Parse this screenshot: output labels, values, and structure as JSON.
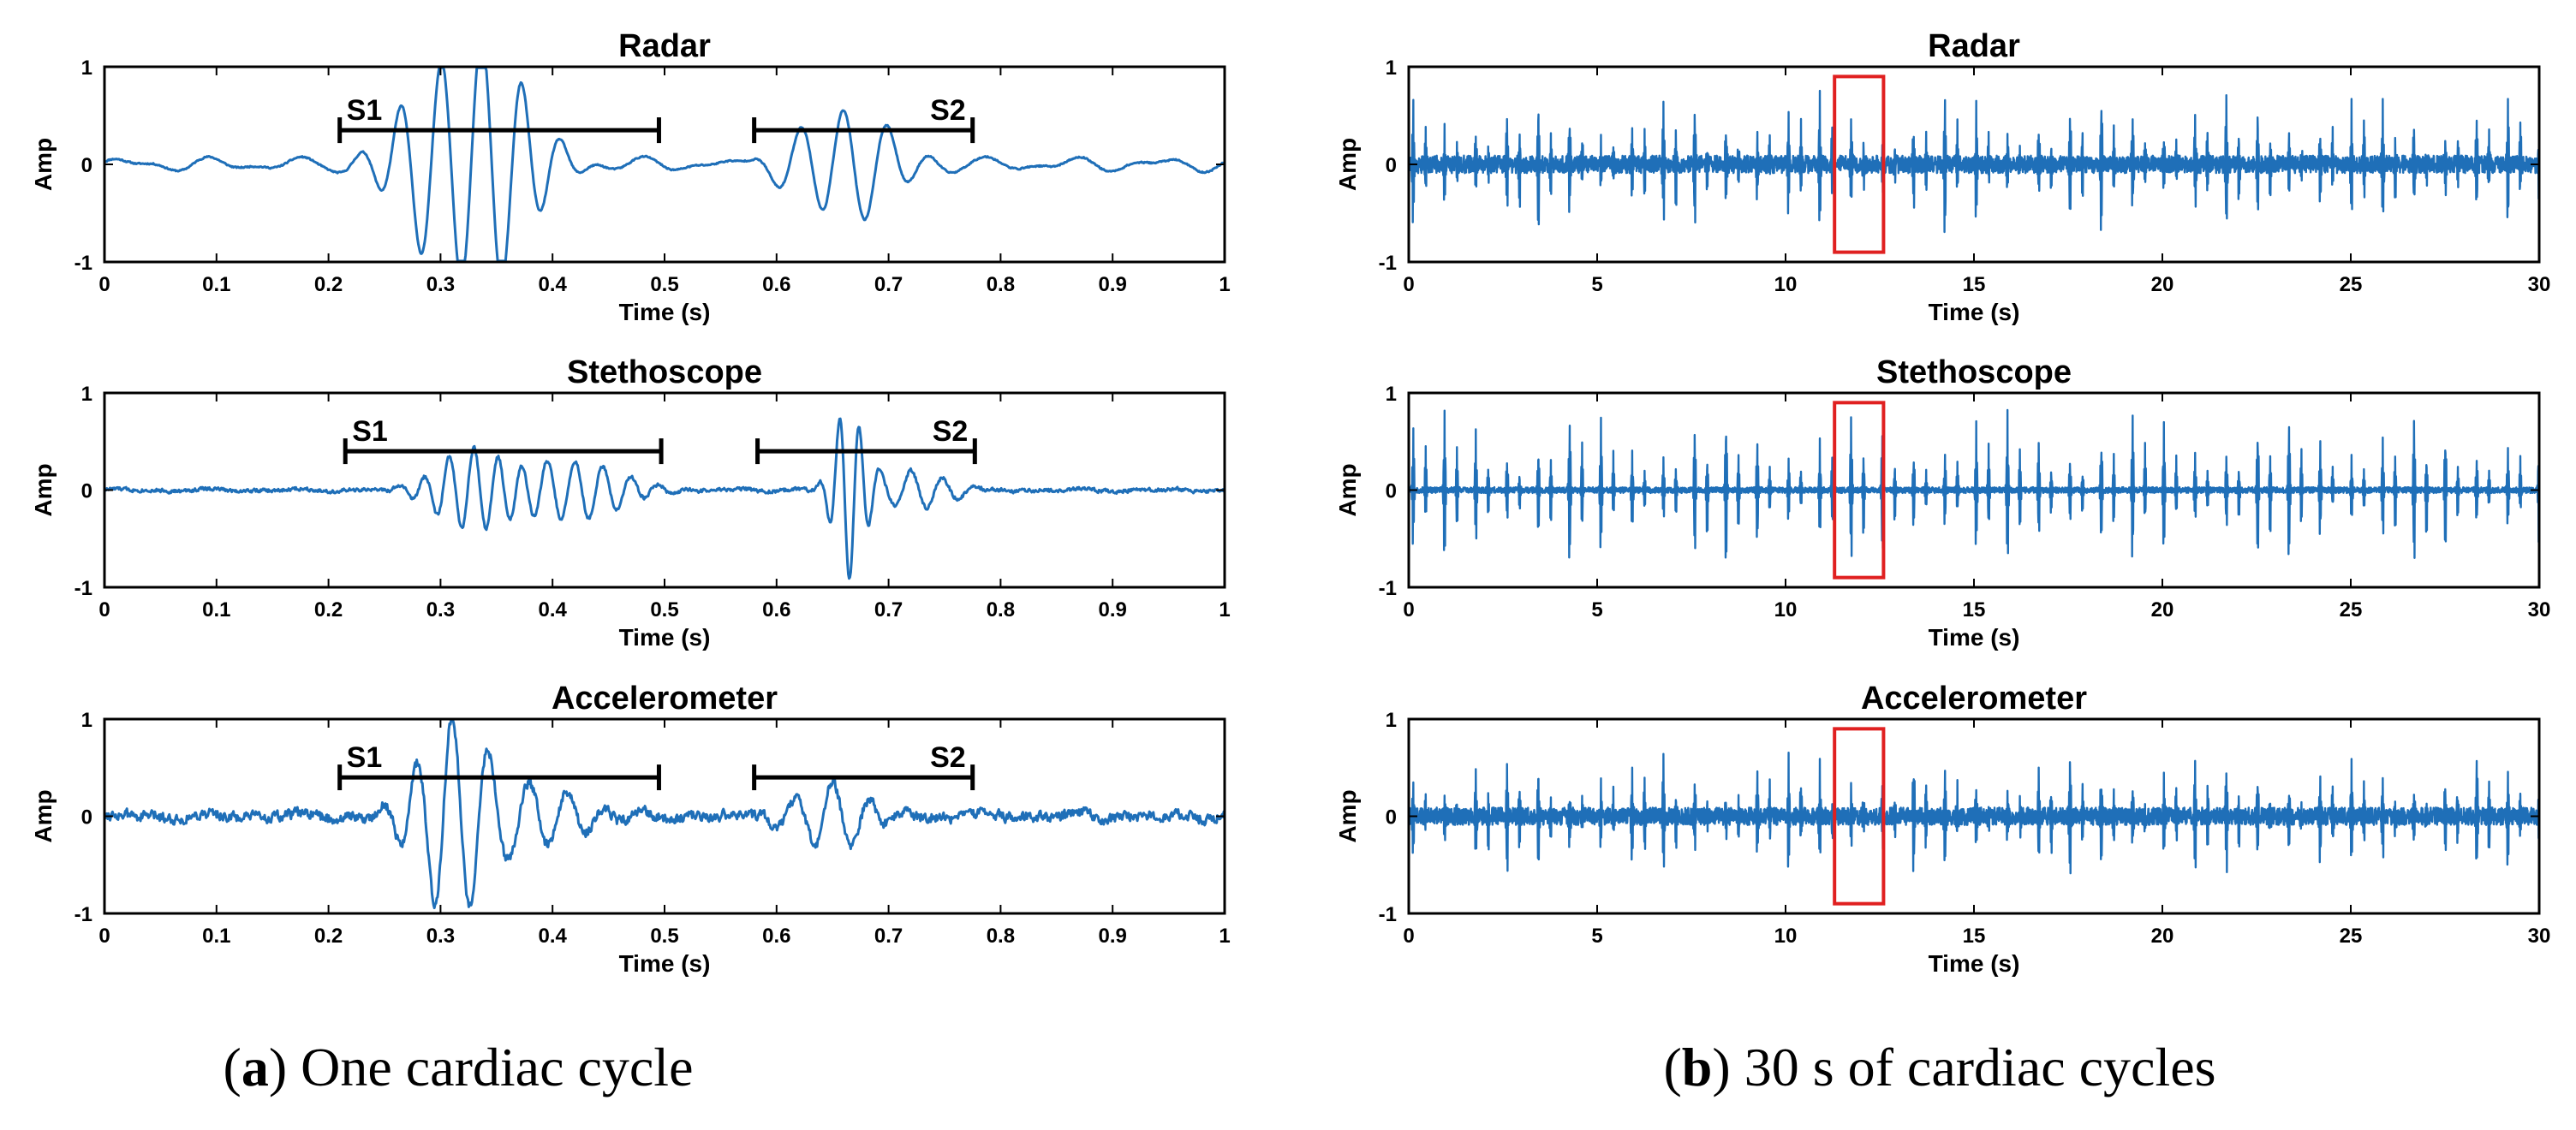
{
  "caption_a": {
    "letter": "a",
    "text": "One cardiac cycle",
    "open": "(",
    "close": ")"
  },
  "caption_b": {
    "letter": "b",
    "text": "30 s of cardiac cycles",
    "open": "(",
    "close": ")"
  },
  "colors": {
    "signal": "#1f6fb8",
    "highlight": "#e02020",
    "axis": "#000000"
  },
  "chart_data": [
    {
      "id": "a-radar",
      "type": "line",
      "title": "Radar",
      "xlabel": "Time (s)",
      "ylabel": "Amp",
      "xlim": [
        0,
        1
      ],
      "ylim": [
        -1,
        1
      ],
      "xticks": [
        0,
        0.1,
        0.2,
        0.3,
        0.4,
        0.5,
        0.6,
        0.7,
        0.8,
        0.9,
        1
      ],
      "xtick_labels": [
        "0",
        "0.1",
        "0.2",
        "0.3",
        "0.4",
        "0.5",
        "0.6",
        "0.7",
        "0.8",
        "0.9",
        "1"
      ],
      "yticks": [
        -1,
        0,
        1
      ],
      "ytick_labels": [
        "-1",
        "0",
        "1"
      ],
      "seed": 11,
      "noise": 0.01,
      "baseline": 0.05,
      "dense": false,
      "bursts": [
        {
          "t": 0.3,
          "amp": 0.9,
          "f": 28,
          "w": 0.035
        },
        {
          "t": 0.355,
          "amp": -0.95,
          "f": 28,
          "w": 0.03
        },
        {
          "t": 0.66,
          "amp": 0.55,
          "f": 26,
          "w": 0.04
        }
      ],
      "segments": [
        {
          "label": "S1",
          "x0": 0.21,
          "x1": 0.495,
          "y": 0.35
        },
        {
          "label": "S2",
          "x0": 0.58,
          "x1": 0.775,
          "y": 0.35
        }
      ]
    },
    {
      "id": "b-radar",
      "type": "line",
      "title": "Radar",
      "xlabel": "Time (s)",
      "ylabel": "Amp",
      "xlim": [
        0,
        30
      ],
      "ylim": [
        -1,
        1
      ],
      "xticks": [
        0,
        5,
        10,
        15,
        20,
        25,
        30
      ],
      "xtick_labels": [
        "0",
        "5",
        "10",
        "15",
        "20",
        "25",
        "30"
      ],
      "yticks": [
        -1,
        0,
        1
      ],
      "ytick_labels": [
        "-1",
        "0",
        "1"
      ],
      "seed": 21,
      "noise": 0.09,
      "baseline": 0,
      "dense": true,
      "beat_period": 0.83,
      "peak_amp": 0.75,
      "highlight": {
        "x0": 11.3,
        "x1": 12.6,
        "y0": -0.9,
        "y1": 0.9
      }
    },
    {
      "id": "a-stethoscope",
      "type": "line",
      "title": "Stethoscope",
      "xlabel": "Time (s)",
      "ylabel": "Amp",
      "xlim": [
        0,
        1
      ],
      "ylim": [
        -1,
        1
      ],
      "xticks": [
        0,
        0.1,
        0.2,
        0.3,
        0.4,
        0.5,
        0.6,
        0.7,
        0.8,
        0.9,
        1
      ],
      "xtick_labels": [
        "0",
        "0.1",
        "0.2",
        "0.3",
        "0.4",
        "0.5",
        "0.6",
        "0.7",
        "0.8",
        "0.9",
        "1"
      ],
      "yticks": [
        -1,
        0,
        1
      ],
      "ytick_labels": [
        "-1",
        "0",
        "1"
      ],
      "seed": 33,
      "noise": 0.025,
      "baseline": 0.01,
      "dense": false,
      "bursts": [
        {
          "t": 0.33,
          "amp": 0.45,
          "f": 45,
          "w": 0.03
        },
        {
          "t": 0.42,
          "amp": 0.3,
          "f": 40,
          "w": 0.04
        },
        {
          "t": 0.665,
          "amp": -0.95,
          "f": 55,
          "w": 0.012
        },
        {
          "t": 0.72,
          "amp": 0.2,
          "f": 35,
          "w": 0.03
        }
      ],
      "segments": [
        {
          "label": "S1",
          "x0": 0.215,
          "x1": 0.497,
          "y": 0.4
        },
        {
          "label": "S2",
          "x0": 0.583,
          "x1": 0.777,
          "y": 0.4
        }
      ]
    },
    {
      "id": "b-stethoscope",
      "type": "line",
      "title": "Stethoscope",
      "xlabel": "Time (s)",
      "ylabel": "Amp",
      "xlim": [
        0,
        30
      ],
      "ylim": [
        -1,
        1
      ],
      "xticks": [
        0,
        5,
        10,
        15,
        20,
        25,
        30
      ],
      "xtick_labels": [
        "0",
        "5",
        "10",
        "15",
        "20",
        "25",
        "30"
      ],
      "yticks": [
        -1,
        0,
        1
      ],
      "ytick_labels": [
        "-1",
        "0",
        "1"
      ],
      "seed": 44,
      "noise": 0.03,
      "baseline": 0,
      "dense": true,
      "beat_period": 0.83,
      "peak_amp": 0.85,
      "highlight": {
        "x0": 11.3,
        "x1": 12.6,
        "y0": -0.9,
        "y1": 0.9
      }
    },
    {
      "id": "a-accelerometer",
      "type": "line",
      "title": "Accelerometer",
      "xlabel": "Time (s)",
      "ylabel": "Amp",
      "xlim": [
        0,
        1
      ],
      "ylim": [
        -1,
        1
      ],
      "xticks": [
        0,
        0.1,
        0.2,
        0.3,
        0.4,
        0.5,
        0.6,
        0.7,
        0.8,
        0.9,
        1
      ],
      "xtick_labels": [
        "0",
        "0.1",
        "0.2",
        "0.3",
        "0.4",
        "0.5",
        "0.6",
        "0.7",
        "0.8",
        "0.9",
        "1"
      ],
      "yticks": [
        -1,
        0,
        1
      ],
      "ytick_labels": [
        "-1",
        "0",
        "1"
      ],
      "seed": 55,
      "noise": 0.07,
      "baseline": 0.02,
      "dense": false,
      "bursts": [
        {
          "t": 0.31,
          "amp": 0.95,
          "f": 32,
          "w": 0.03
        },
        {
          "t": 0.38,
          "amp": 0.35,
          "f": 30,
          "w": 0.04
        },
        {
          "t": 0.65,
          "amp": 0.35,
          "f": 30,
          "w": 0.03
        }
      ],
      "segments": [
        {
          "label": "S1",
          "x0": 0.21,
          "x1": 0.495,
          "y": 0.4
        },
        {
          "label": "S2",
          "x0": 0.58,
          "x1": 0.775,
          "y": 0.4
        }
      ]
    },
    {
      "id": "b-accelerometer",
      "type": "line",
      "title": "Accelerometer",
      "xlabel": "Time (s)",
      "ylabel": "Amp",
      "xlim": [
        0,
        30
      ],
      "ylim": [
        -1,
        1
      ],
      "xticks": [
        0,
        5,
        10,
        15,
        20,
        25,
        30
      ],
      "xtick_labels": [
        "0",
        "5",
        "10",
        "15",
        "20",
        "25",
        "30"
      ],
      "yticks": [
        -1,
        0,
        1
      ],
      "ytick_labels": [
        "-1",
        "0",
        "1"
      ],
      "seed": 66,
      "noise": 0.09,
      "baseline": 0,
      "dense": true,
      "beat_period": 0.83,
      "peak_amp": 0.65,
      "highlight": {
        "x0": 11.3,
        "x1": 12.6,
        "y0": -0.9,
        "y1": 0.9
      }
    }
  ]
}
